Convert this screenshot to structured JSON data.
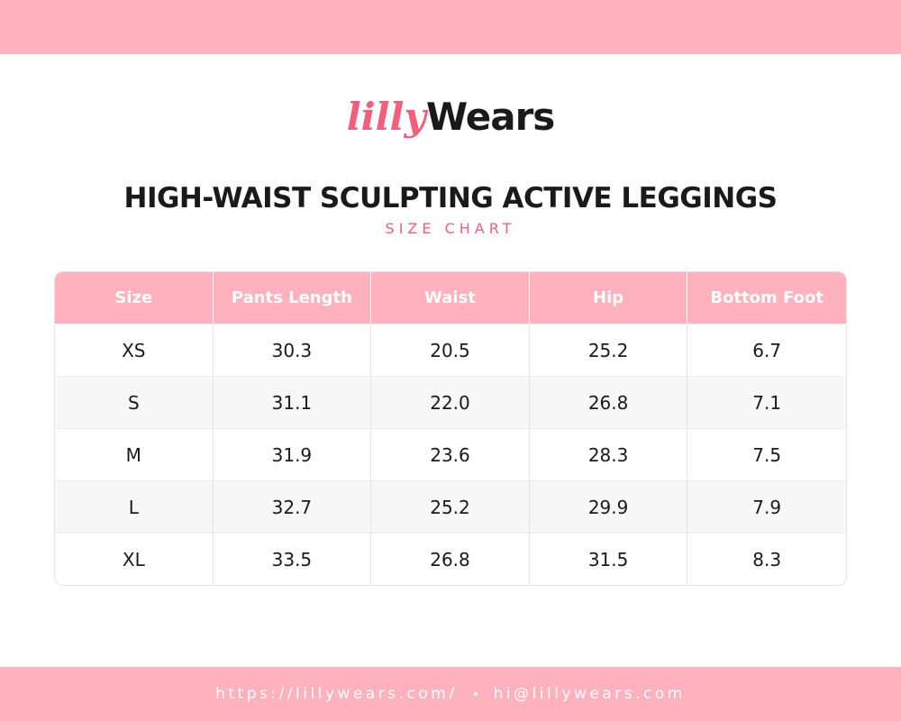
{
  "logo": {
    "part1": "lilly",
    "part2": "Wears"
  },
  "header": {
    "title": "HIGH-WAIST SCULPTING ACTIVE LEGGINGS",
    "subtitle": "SIZE CHART"
  },
  "table": {
    "columns": [
      "Size",
      "Pants Length",
      "Waist",
      "Hip",
      "Bottom Foot"
    ],
    "rows": [
      [
        "XS",
        "30.3",
        "20.5",
        "25.2",
        "6.7"
      ],
      [
        "S",
        "31.1",
        "22.0",
        "26.8",
        "7.1"
      ],
      [
        "M",
        "31.9",
        "23.6",
        "28.3",
        "7.5"
      ],
      [
        "L",
        "32.7",
        "25.2",
        "29.9",
        "7.9"
      ],
      [
        "XL",
        "33.5",
        "26.8",
        "31.5",
        "8.3"
      ]
    ]
  },
  "footer": {
    "url": "https://lillywears.com/",
    "email": "hi@lillywears.com"
  }
}
